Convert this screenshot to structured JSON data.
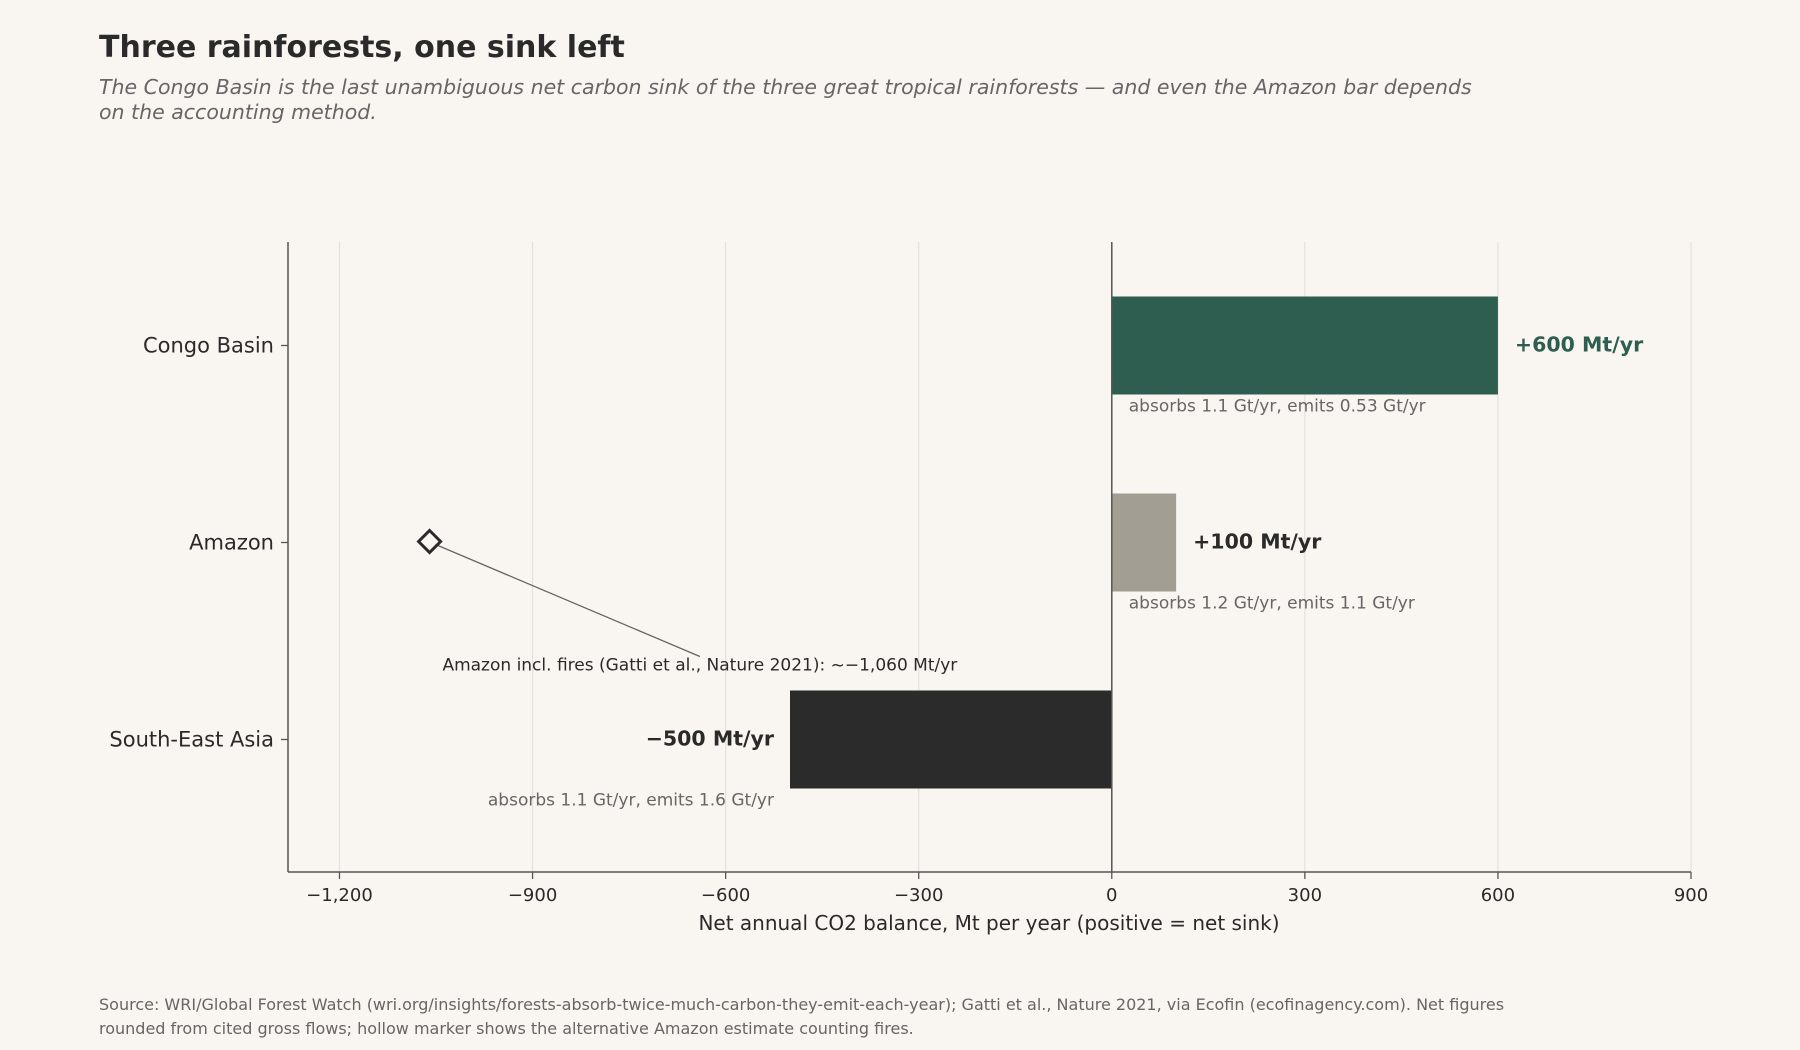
{
  "chart_data": {
    "type": "bar",
    "orientation": "horizontal",
    "title": "Three rainforests, one sink left",
    "subtitle": "The Congo Basin is the last unambiguous net carbon sink of the three great tropical rainforests — and even the Amazon bar depends on the accounting method.",
    "xlabel": "Net annual CO2 balance, Mt per year (positive = net sink)",
    "ylabel": "",
    "xlim": [
      -1280,
      900
    ],
    "xticks": [
      -1200,
      -900,
      -600,
      -300,
      0,
      300,
      600,
      900
    ],
    "xtick_labels": [
      "−1,200",
      "−900",
      "−600",
      "−300",
      "0",
      "300",
      "600",
      "900"
    ],
    "grid": "vertical",
    "categories": [
      "Congo Basin",
      "Amazon",
      "South-East Asia"
    ],
    "values": [
      600,
      100,
      -500
    ],
    "value_labels": [
      "+600 Mt/yr",
      "+100 Mt/yr",
      "−500 Mt/yr"
    ],
    "gross_flows": [
      "absorbs 1.1 Gt/yr, emits 0.53 Gt/yr",
      "absorbs 1.2 Gt/yr, emits 1.1 Gt/yr",
      "absorbs 1.1 Gt/yr, emits 1.6 Gt/yr"
    ],
    "bar_colors": [
      "#2e5e50",
      "#a29e93",
      "#2b2b2b"
    ],
    "value_label_colors": [
      "#2e5e50",
      "#2a2a2a",
      "#2a2a2a"
    ],
    "alt_marker": {
      "category": "Amazon",
      "value": -1060,
      "marker": "hollow-diamond",
      "label": "Amazon incl. fires (Gatti et al., Nature 2021): ~−1,060 Mt/yr"
    },
    "source": "Source: WRI/Global Forest Watch (wri.org/insights/forests-absorb-twice-much-carbon-they-emit-each-year); Gatti et al., Nature 2021, via Ecofin (ecofinagency.com). Net figures rounded from cited gross flows; hollow marker shows the alternative Amazon estimate counting fires."
  }
}
